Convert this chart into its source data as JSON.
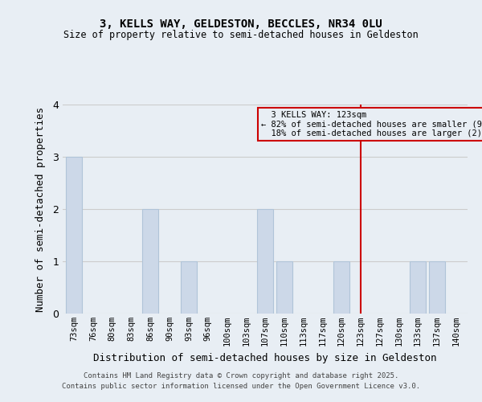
{
  "title": "3, KELLS WAY, GELDESTON, BECCLES, NR34 0LU",
  "subtitle": "Size of property relative to semi-detached houses in Geldeston",
  "xlabel": "Distribution of semi-detached houses by size in Geldeston",
  "ylabel": "Number of semi-detached properties",
  "bins": [
    "73sqm",
    "76sqm",
    "80sqm",
    "83sqm",
    "86sqm",
    "90sqm",
    "93sqm",
    "96sqm",
    "100sqm",
    "103sqm",
    "107sqm",
    "110sqm",
    "113sqm",
    "117sqm",
    "120sqm",
    "123sqm",
    "127sqm",
    "130sqm",
    "133sqm",
    "137sqm",
    "140sqm"
  ],
  "counts": [
    3,
    0,
    0,
    0,
    2,
    0,
    1,
    0,
    0,
    0,
    2,
    1,
    0,
    0,
    1,
    0,
    0,
    0,
    1,
    1,
    0
  ],
  "bar_color": "#ccd8e8",
  "bar_edge_color": "#b0c4d8",
  "highlight_line_index": 15,
  "highlight_label": "3 KELLS WAY: 123sqm",
  "highlight_smaller_pct": "82%",
  "highlight_smaller_n": 9,
  "highlight_larger_pct": "18%",
  "highlight_larger_n": 2,
  "line_color": "#cc0000",
  "box_edge_color": "#cc0000",
  "ylim": [
    0,
    4
  ],
  "yticks": [
    0,
    1,
    2,
    3,
    4
  ],
  "grid_color": "#cccccc",
  "bg_color": "#e8eef4",
  "footnote1": "Contains HM Land Registry data © Crown copyright and database right 2025.",
  "footnote2": "Contains public sector information licensed under the Open Government Licence v3.0."
}
